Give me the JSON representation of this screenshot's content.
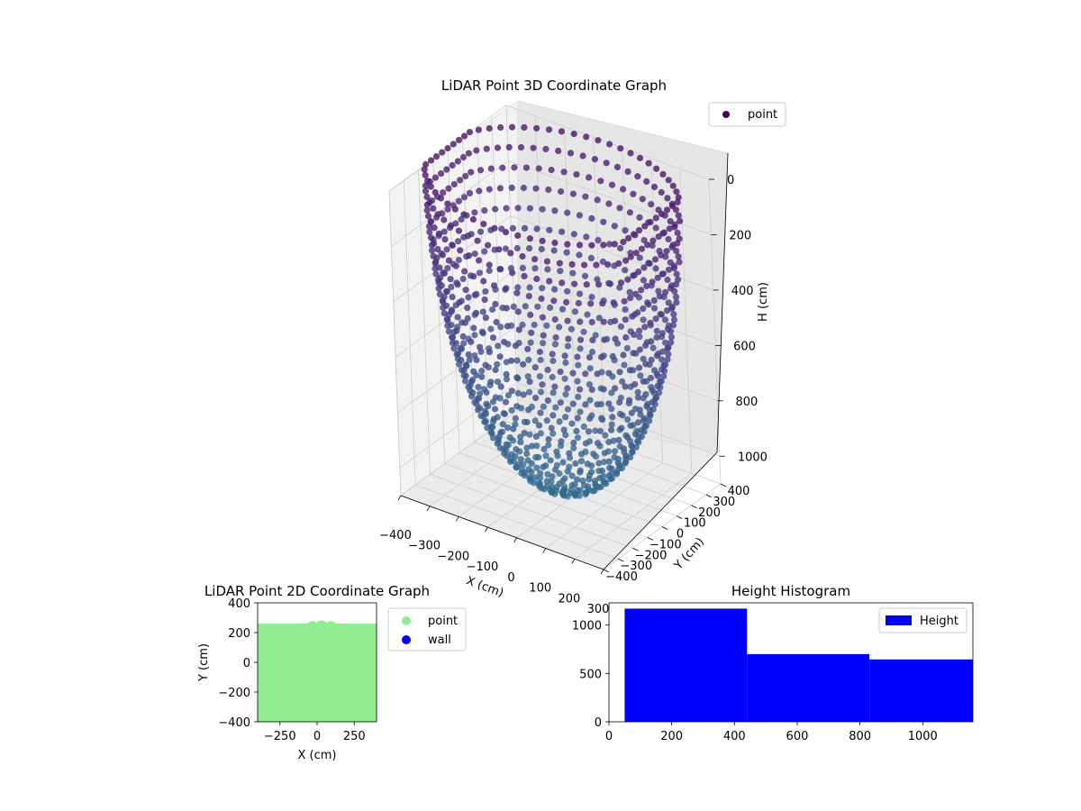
{
  "chart_data": [
    {
      "type": "scatter",
      "projection": "3d",
      "title": "LiDAR Point 3D Coordinate Graph",
      "xlabel": "X (cm)",
      "ylabel": "Y (cm)",
      "zlabel": "H (cm)",
      "xlim": [
        -400,
        300
      ],
      "ylim": [
        -400,
        400
      ],
      "zlim": [
        0,
        1100
      ],
      "z_inverted": true,
      "xticks": [
        "−400",
        "−300",
        "−200",
        "−100",
        "0",
        "100",
        "200",
        "300"
      ],
      "yticks": [
        "−400",
        "−300",
        "−200",
        "−100",
        "0",
        "100",
        "200",
        "300",
        "400"
      ],
      "zticks": [
        "0",
        "200",
        "400",
        "600",
        "800",
        "1000"
      ],
      "series": [
        {
          "name": "point",
          "shape": "dome",
          "radius_range": [
            260,
            400
          ],
          "height_range": [
            0,
            1100
          ],
          "colormap": "viridis"
        }
      ],
      "legend_position": "top-right",
      "grid": true
    },
    {
      "type": "scatter",
      "title": "LiDAR Point 2D Coordinate Graph",
      "xlabel": "X (cm)",
      "ylabel": "Y (cm)",
      "xlim": [
        -400,
        400
      ],
      "ylim": [
        -400,
        400
      ],
      "xticks": [
        "−250",
        "0",
        "250"
      ],
      "yticks": [
        "−400",
        "−200",
        "0",
        "200",
        "400"
      ],
      "series": [
        {
          "name": "point",
          "color": "#90ee90",
          "shape": "disc",
          "radius": 400
        },
        {
          "name": "wall",
          "color": "#0000ff",
          "points": []
        }
      ],
      "legend_position": "outside-right",
      "grid": false
    },
    {
      "type": "bar",
      "subtype": "histogram",
      "title": "Height Histogram",
      "xlabel": "",
      "ylabel": "",
      "bins": [
        {
          "x0": 50,
          "x1": 440,
          "count": 1170
        },
        {
          "x0": 440,
          "x1": 830,
          "count": 700
        },
        {
          "x0": 830,
          "x1": 1160,
          "count": 645
        }
      ],
      "xlim": [
        0,
        1160
      ],
      "ylim": [
        0,
        1230
      ],
      "xticks": [
        0,
        200,
        400,
        600,
        800,
        1000
      ],
      "yticks": [
        0,
        500,
        1000
      ],
      "series": [
        {
          "name": "Height",
          "color": "#0000ff"
        }
      ],
      "legend_position": "top-right",
      "grid": false
    }
  ]
}
